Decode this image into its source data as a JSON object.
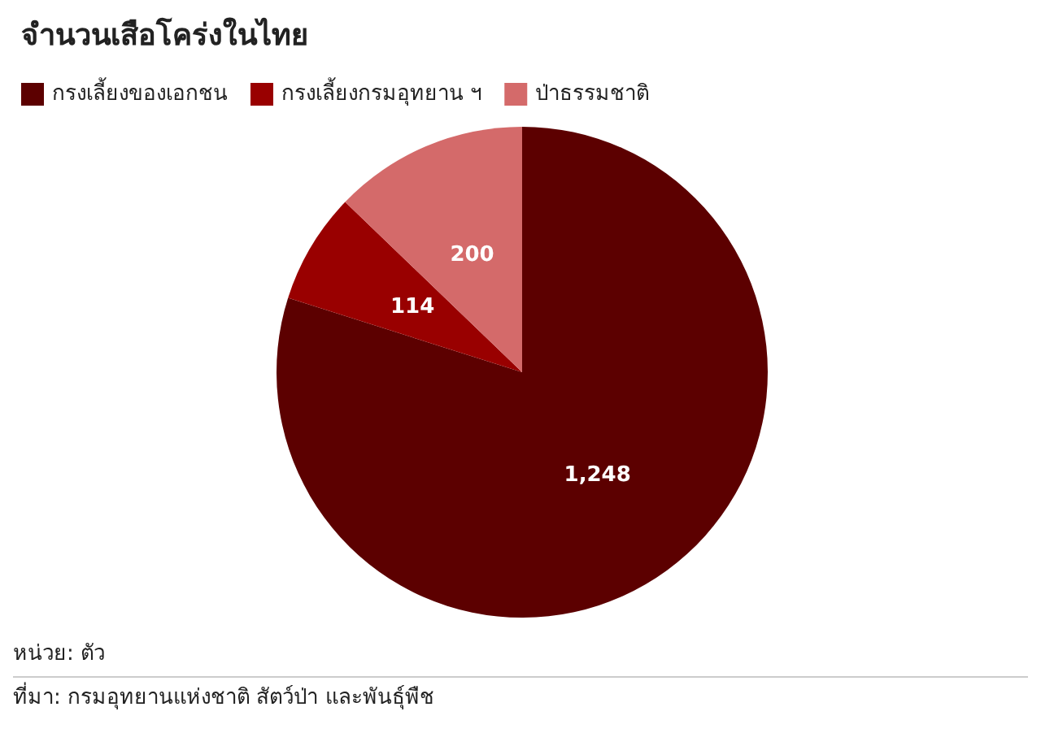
{
  "chart_data": {
    "type": "pie",
    "title": "จำนวนเสือโคร่งในไทย",
    "categories": [
      "กรงเลี้ยงของเอกชน",
      "กรงเลี้ยงกรมอุทยาน ฯ",
      "ป่าธรรมชาติ"
    ],
    "values": [
      1248,
      114,
      200
    ],
    "colors": [
      "#5c0000",
      "#990000",
      "#d46a6a"
    ],
    "value_labels": [
      "1,248",
      "114",
      "200"
    ],
    "legend": "top left",
    "annotations": [
      "หน่วย: ตัว",
      "ที่มา: กรมอุทยานแห่งชาติ สัตว์ป่า และพันธุ์พืช"
    ]
  }
}
